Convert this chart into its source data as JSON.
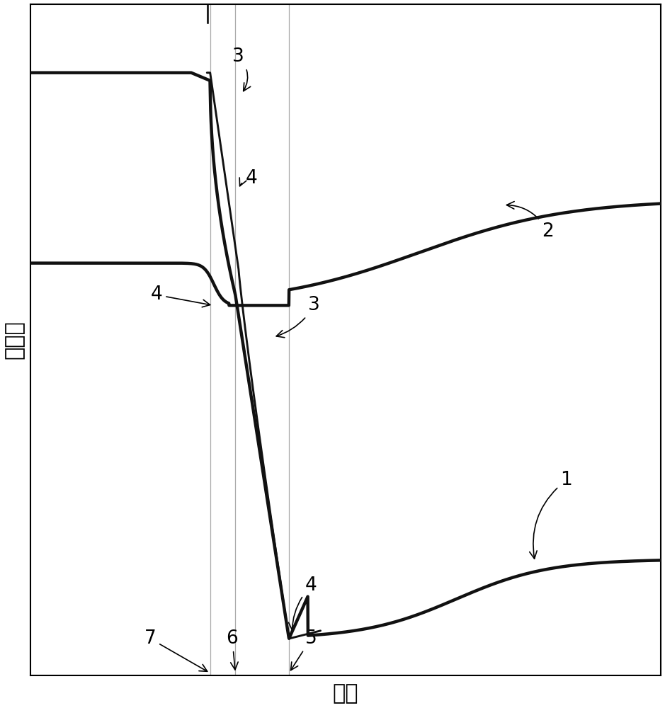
{
  "xlabel": "温度",
  "ylabel": "変形量",
  "xlabel_fontsize": 22,
  "ylabel_fontsize": 22,
  "background_color": "#ffffff",
  "line_color": "#111111",
  "line_lw": 3.2,
  "thin_lw": 0.9,
  "ann_fs": 19,
  "xlim": [
    0,
    10
  ],
  "ylim": [
    -2.2,
    10.5
  ],
  "vl1": 2.85,
  "vl2": 3.25,
  "vl3": 4.1
}
